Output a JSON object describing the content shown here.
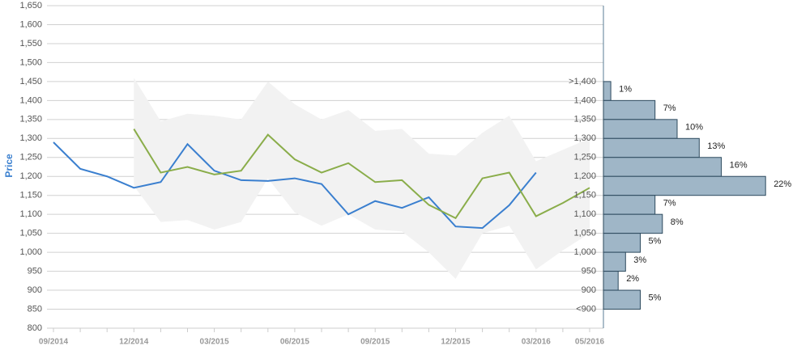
{
  "chart_data": [
    {
      "type": "line",
      "y_label": "Price",
      "categories": [
        "09/2014",
        null,
        null,
        "12/2014",
        null,
        null,
        "03/2015",
        null,
        null,
        "06/2015",
        null,
        null,
        "09/2015",
        null,
        null,
        "12/2015",
        null,
        null,
        "03/2016",
        null,
        "05/2016"
      ],
      "series": [
        {
          "color": "#3a7fcf",
          "values": [
            1290,
            1220,
            1200,
            1170,
            1185,
            1285,
            1215,
            1190,
            1188,
            1195,
            1180,
            1100,
            1135,
            1117,
            1145,
            1068,
            1064,
            1124,
            1210,
            null,
            null
          ]
        },
        {
          "color": "#8aad4a",
          "values": [
            null,
            null,
            null,
            1325,
            1210,
            1225,
            1205,
            1215,
            1310,
            1245,
            1210,
            1235,
            1185,
            1190,
            1125,
            1090,
            1195,
            1210,
            1095,
            1130,
            1170
          ]
        }
      ],
      "band": {
        "color": "#f2f2f2",
        "upper": [
          null,
          null,
          null,
          1460,
          1345,
          1365,
          1360,
          1350,
          1450,
          1390,
          1350,
          1375,
          1320,
          1325,
          1260,
          1255,
          1315,
          1360,
          1240,
          1270,
          1300
        ],
        "lower": [
          null,
          null,
          null,
          1175,
          1080,
          1085,
          1060,
          1080,
          1195,
          1105,
          1070,
          1100,
          1060,
          1055,
          1000,
          930,
          1050,
          1070,
          955,
          1005,
          1050
        ]
      },
      "ylim": [
        800,
        1650
      ],
      "yticks": [
        800,
        850,
        900,
        950,
        {
          "value": 1000,
          "label": "1,000"
        },
        {
          "value": 1050,
          "label": "1,050"
        },
        {
          "value": 1100,
          "label": "1,100"
        },
        {
          "value": 1150,
          "label": "1,150"
        },
        {
          "value": 1200,
          "label": "1,200"
        },
        {
          "value": 1250,
          "label": "1,250"
        },
        {
          "value": 1300,
          "label": "1,300"
        },
        {
          "value": 1350,
          "label": "1,350"
        },
        {
          "value": 1400,
          "label": "1,400"
        },
        {
          "value": 1450,
          "label": "1,450"
        },
        {
          "value": 1500,
          "label": "1,500"
        },
        {
          "value": 1550,
          "label": "1,550"
        },
        {
          "value": 1600,
          "label": "1,600"
        },
        {
          "value": 1650,
          "label": "1,650"
        }
      ],
      "grid": true
    },
    {
      "type": "histogram",
      "categories": [
        ">1,400",
        "1,400",
        "1,350",
        "1,300",
        "1,250",
        "1,200",
        "1,150",
        "1,100",
        "1,050",
        "1,000",
        "950",
        "900",
        "<900"
      ],
      "bins": [
        1450,
        1400,
        1350,
        1300,
        1250,
        1200,
        1150,
        1100,
        1050,
        1000,
        950,
        900,
        850
      ],
      "values": [
        1,
        7,
        10,
        13,
        16,
        22,
        7,
        8,
        5,
        3,
        2,
        5
      ],
      "value_labels": [
        "1%",
        "7%",
        "10%",
        "13%",
        "16%",
        "22%",
        "7%",
        "8%",
        "5%",
        "3%",
        "2%",
        "5%"
      ],
      "color": "#9fb6c7"
    }
  ]
}
